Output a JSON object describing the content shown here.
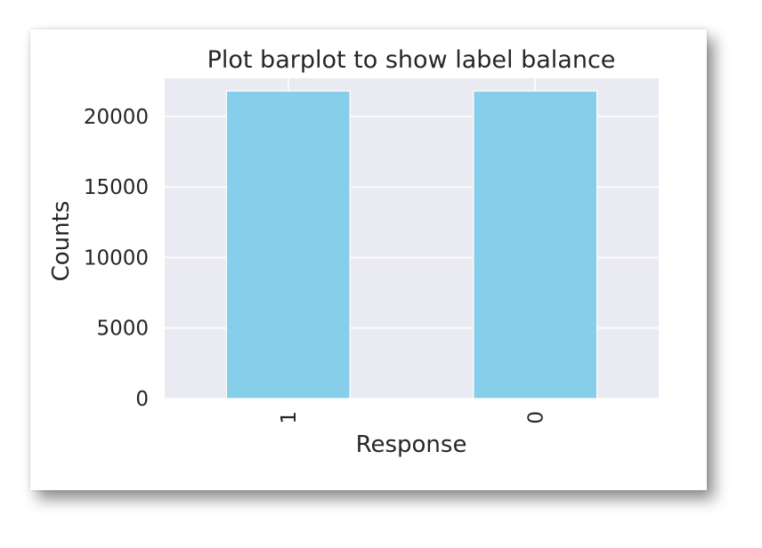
{
  "chart_data": {
    "type": "bar",
    "title": "Plot barplot to show label balance",
    "xlabel": "Response",
    "ylabel": "Counts",
    "categories": [
      "1",
      "0"
    ],
    "values": [
      21800,
      21800
    ],
    "ylim": [
      0,
      22700
    ],
    "yticks": [
      0,
      5000,
      10000,
      15000,
      20000
    ],
    "ytick_labels": [
      "0",
      "5000",
      "10000",
      "15000",
      "20000"
    ],
    "grid": true,
    "bar_color": "#87ceeb",
    "plot_background": "#eaeaf2",
    "grid_color": "#ffffff"
  }
}
